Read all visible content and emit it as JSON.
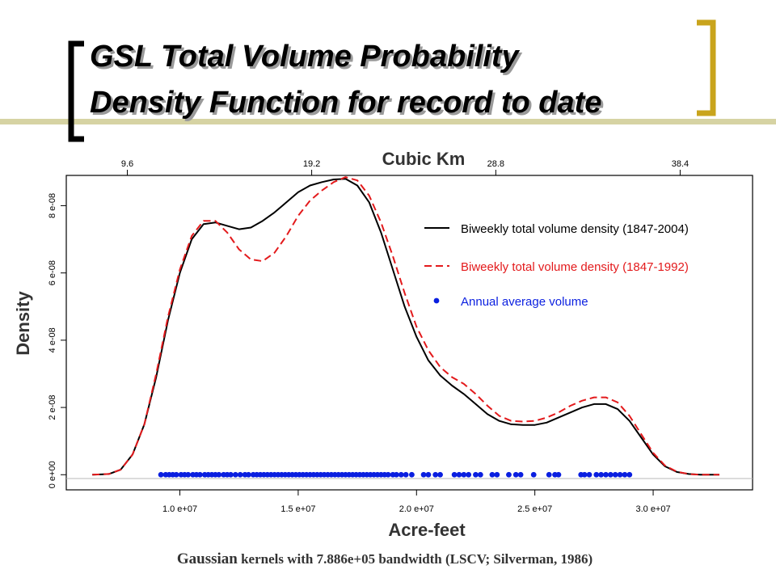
{
  "slide": {
    "title_line1": "GSL Total Volume Probability",
    "title_line2": "Density Function for record to date",
    "bracket_color": "#c9a41c",
    "rule_color": "#d6d3a3",
    "footnote_parts": [
      "Gaussian",
      " kernels with 7.886e+05 bandwidth (LSCV; Silverman, 1986)"
    ]
  },
  "chart_data": {
    "type": "line",
    "title": "",
    "xlabel": "Acre-feet",
    "ylabel": "Density",
    "top_axis_label": "Cubic Km",
    "xlim": [
      5200000,
      34200000
    ],
    "ylim": [
      -4.5e-09,
      8.9e-08
    ],
    "x_ticks": [
      10000000,
      15000000,
      20000000,
      25000000,
      30000000
    ],
    "x_tick_labels": [
      "1.0 e+07",
      "1.5 e+07",
      "2.0 e+07",
      "2.5 e+07",
      "3.0 e+07"
    ],
    "top_ticks": [
      9.6,
      19.2,
      28.8,
      38.4
    ],
    "top_tick_labels": [
      "9.6",
      "19.2",
      "28.8",
      "38.4"
    ],
    "top_ticks_acre_feet": [
      7780000,
      15570000,
      23350000,
      31140000
    ],
    "y_ticks": [
      0,
      2e-08,
      4e-08,
      6e-08,
      8e-08
    ],
    "y_tick_labels": [
      "0 e+00",
      "2 e-08",
      "4 e-08",
      "6 e-08",
      "8 e-08"
    ],
    "grid": false,
    "baseline_at_zero": true,
    "legend_position": "top-right",
    "series": [
      {
        "name": "Biweekly total volume density (1847-2004)",
        "color": "#000000",
        "dash": "solid",
        "x": [
          6300000,
          7000000,
          7500000,
          8000000,
          8500000,
          9000000,
          9500000,
          10000000,
          10500000,
          11000000,
          11500000,
          12000000,
          12500000,
          13000000,
          13500000,
          14000000,
          14500000,
          15000000,
          15500000,
          16000000,
          16500000,
          17000000,
          17500000,
          18000000,
          18500000,
          19000000,
          19500000,
          20000000,
          20500000,
          21000000,
          21500000,
          22000000,
          22500000,
          23000000,
          23500000,
          24000000,
          24500000,
          25000000,
          25500000,
          26000000,
          26500000,
          27000000,
          27500000,
          28000000,
          28500000,
          29000000,
          29500000,
          30000000,
          30500000,
          31000000,
          31500000,
          32000000,
          32800000
        ],
        "y": [
          0,
          2e-10,
          1.5e-09,
          6e-09,
          1.5e-08,
          2.9e-08,
          4.6e-08,
          6e-08,
          7e-08,
          7.45e-08,
          7.5e-08,
          7.4e-08,
          7.3e-08,
          7.35e-08,
          7.55e-08,
          7.8e-08,
          8.1e-08,
          8.4e-08,
          8.6e-08,
          8.7e-08,
          8.78e-08,
          8.8e-08,
          8.6e-08,
          8.1e-08,
          7.2e-08,
          6.1e-08,
          5e-08,
          4.1e-08,
          3.4e-08,
          2.95e-08,
          2.65e-08,
          2.4e-08,
          2.1e-08,
          1.8e-08,
          1.6e-08,
          1.5e-08,
          1.48e-08,
          1.48e-08,
          1.55e-08,
          1.7e-08,
          1.85e-08,
          2e-08,
          2.1e-08,
          2.1e-08,
          1.95e-08,
          1.6e-08,
          1.1e-08,
          6e-09,
          2.5e-09,
          8e-10,
          2e-10,
          0,
          0
        ]
      },
      {
        "name": "Biweekly total volume density (1847-1992)",
        "color": "#e31a1c",
        "dash": "dashed",
        "x": [
          6300000,
          7000000,
          7500000,
          8000000,
          8500000,
          9000000,
          9500000,
          10000000,
          10500000,
          11000000,
          11500000,
          12000000,
          12500000,
          13000000,
          13500000,
          14000000,
          14500000,
          15000000,
          15500000,
          16000000,
          16500000,
          17000000,
          17500000,
          18000000,
          18500000,
          19000000,
          19500000,
          20000000,
          20500000,
          21000000,
          21500000,
          22000000,
          22500000,
          23000000,
          23500000,
          24000000,
          24500000,
          25000000,
          25500000,
          26000000,
          26500000,
          27000000,
          27500000,
          28000000,
          28500000,
          29000000,
          29500000,
          30000000,
          30500000,
          31000000,
          31500000,
          32000000,
          32800000
        ],
        "y": [
          0,
          2e-10,
          1.5e-09,
          6e-09,
          1.5e-08,
          3e-08,
          4.7e-08,
          6.1e-08,
          7.1e-08,
          7.55e-08,
          7.55e-08,
          7.2e-08,
          6.7e-08,
          6.4e-08,
          6.35e-08,
          6.6e-08,
          7.1e-08,
          7.7e-08,
          8.15e-08,
          8.45e-08,
          8.7e-08,
          8.85e-08,
          8.75e-08,
          8.3e-08,
          7.5e-08,
          6.5e-08,
          5.4e-08,
          4.4e-08,
          3.7e-08,
          3.2e-08,
          2.9e-08,
          2.7e-08,
          2.4e-08,
          2.05e-08,
          1.75e-08,
          1.6e-08,
          1.58e-08,
          1.6e-08,
          1.7e-08,
          1.85e-08,
          2.05e-08,
          2.2e-08,
          2.3e-08,
          2.3e-08,
          2.15e-08,
          1.75e-08,
          1.2e-08,
          6.5e-09,
          2.7e-09,
          9e-10,
          2e-10,
          0,
          0
        ]
      },
      {
        "name": "Annual average volume",
        "color": "#0a1fe0",
        "type": "scatter",
        "x": [
          9200000,
          9400000,
          9550000,
          9700000,
          9850000,
          10050000,
          10200000,
          10350000,
          10550000,
          10700000,
          10850000,
          11050000,
          11200000,
          11350000,
          11500000,
          11650000,
          11850000,
          12000000,
          12150000,
          12350000,
          12550000,
          12750000,
          12900000,
          13100000,
          13250000,
          13400000,
          13550000,
          13700000,
          13850000,
          14000000,
          14150000,
          14300000,
          14450000,
          14600000,
          14750000,
          14900000,
          15050000,
          15200000,
          15350000,
          15500000,
          15650000,
          15800000,
          15950000,
          16100000,
          16250000,
          16400000,
          16550000,
          16700000,
          16850000,
          17000000,
          17150000,
          17300000,
          17450000,
          17600000,
          17750000,
          17900000,
          18050000,
          18200000,
          18350000,
          18500000,
          18650000,
          18800000,
          19000000,
          19150000,
          19350000,
          19550000,
          19800000,
          20300000,
          20500000,
          20800000,
          21000000,
          21600000,
          21800000,
          22000000,
          22200000,
          22500000,
          22700000,
          23200000,
          23400000,
          23900000,
          24200000,
          24400000,
          24950000,
          25600000,
          25850000,
          26000000,
          26950000,
          27100000,
          27300000,
          27600000,
          27800000,
          28000000,
          28200000,
          28400000,
          28600000,
          28800000,
          29000000
        ],
        "y": [
          0,
          0,
          0,
          0,
          0,
          0,
          0,
          0,
          0,
          0,
          0,
          0,
          0,
          0,
          0,
          0,
          0,
          0,
          0,
          0,
          0,
          0,
          0,
          0,
          0,
          0,
          0,
          0,
          0,
          0,
          0,
          0,
          0,
          0,
          0,
          0,
          0,
          0,
          0,
          0,
          0,
          0,
          0,
          0,
          0,
          0,
          0,
          0,
          0,
          0,
          0,
          0,
          0,
          0,
          0,
          0,
          0,
          0,
          0,
          0,
          0,
          0,
          0,
          0,
          0,
          0,
          0,
          0,
          0,
          0,
          0,
          0,
          0,
          0,
          0,
          0,
          0,
          0,
          0,
          0,
          0,
          0,
          0,
          0,
          0,
          0,
          0,
          0,
          0,
          0,
          0,
          0,
          0,
          0,
          0,
          0,
          0
        ]
      }
    ]
  }
}
